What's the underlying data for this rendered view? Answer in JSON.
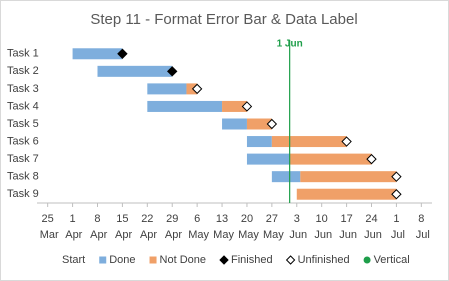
{
  "chart_data": {
    "type": "gantt",
    "title": "Step 11 - Format Error Bar & Data Label",
    "categories": [
      "Task 1",
      "Task 2",
      "Task 3",
      "Task 4",
      "Task 5",
      "Task 6",
      "Task 7",
      "Task 8",
      "Task 9"
    ],
    "series": [
      {
        "name": "Start",
        "color": "none",
        "mark": "bar",
        "values": [
          91,
          98,
          112,
          112,
          133,
          140,
          140,
          147,
          154
        ]
      },
      {
        "name": "Done",
        "color": "#7eaedd",
        "mark": "bar",
        "values": [
          14,
          21,
          11,
          21,
          7,
          7,
          12,
          8,
          0
        ]
      },
      {
        "name": "Not Done",
        "color": "#f0a068",
        "mark": "bar",
        "values": [
          0,
          0,
          3,
          7,
          7,
          21,
          23,
          27,
          28
        ]
      },
      {
        "name": "Finished",
        "color": "#000000",
        "mark": "diamond",
        "values": [
          105,
          119,
          null,
          null,
          null,
          null,
          null,
          null,
          null
        ]
      },
      {
        "name": "Unfinished",
        "color": "#ffffff",
        "mark": "diamond",
        "values": [
          null,
          null,
          126,
          140,
          147,
          168,
          175,
          182,
          182
        ]
      }
    ],
    "vline": {
      "name": "Vertical",
      "x": 152,
      "label": "1 Jun",
      "color": "#1e9e4a"
    },
    "xlim": [
      81,
      192
    ],
    "xticks": [
      {
        "value": 84,
        "label": "25 Mar"
      },
      {
        "value": 91,
        "label": "1 Apr"
      },
      {
        "value": 98,
        "label": "8 Apr"
      },
      {
        "value": 105,
        "label": "15 Apr"
      },
      {
        "value": 112,
        "label": "22 Apr"
      },
      {
        "value": 119,
        "label": "29 Apr"
      },
      {
        "value": 126,
        "label": "6 May"
      },
      {
        "value": 133,
        "label": "13 May"
      },
      {
        "value": 140,
        "label": "20 May"
      },
      {
        "value": 147,
        "label": "27 May"
      },
      {
        "value": 154,
        "label": "3 Jun"
      },
      {
        "value": 161,
        "label": "10 Jun"
      },
      {
        "value": 168,
        "label": "17 Jun"
      },
      {
        "value": 175,
        "label": "24 Jun"
      },
      {
        "value": 182,
        "label": "1 Jul"
      },
      {
        "value": 189,
        "label": "8 Jul"
      }
    ]
  }
}
